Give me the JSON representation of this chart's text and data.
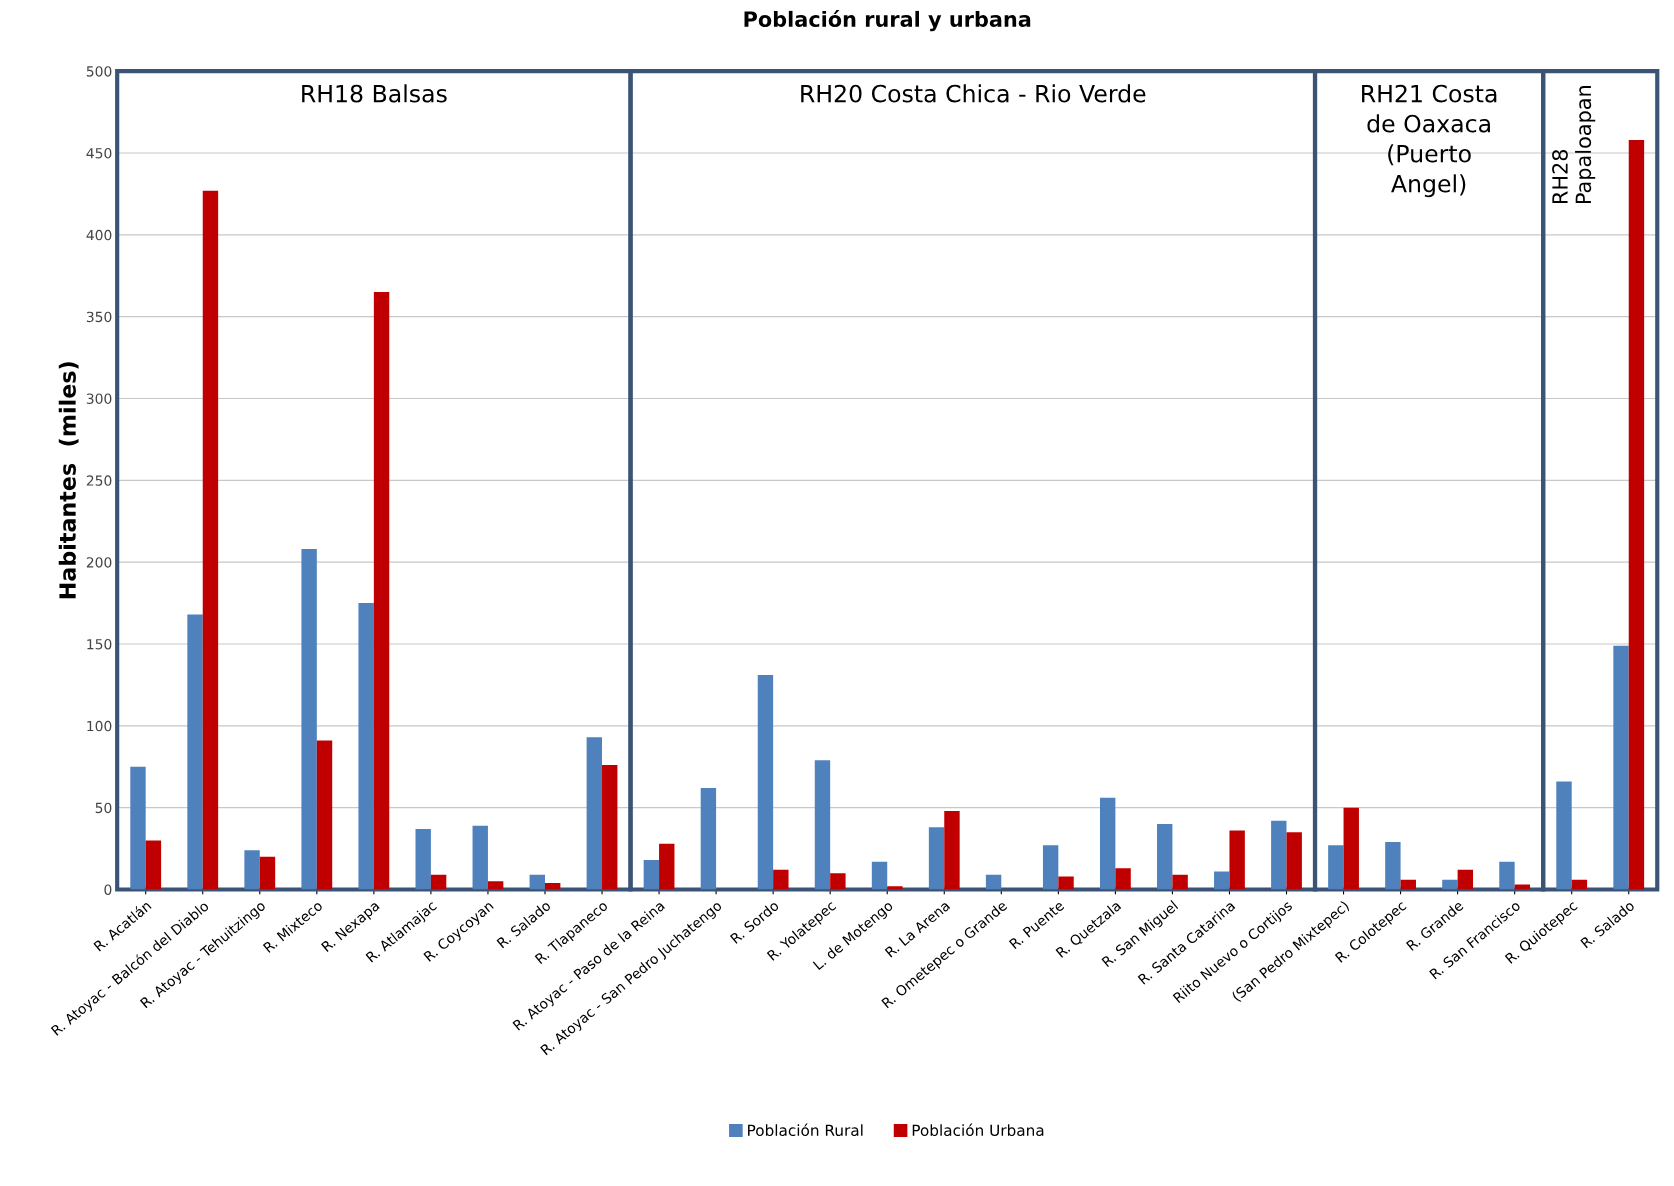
{
  "chart_data": {
    "type": "bar",
    "title": "Población rural y urbana",
    "ylabel": "Habitantes  (miles)",
    "categories": [
      "R. Acatlán",
      "R. Atoyac - Balcón del Diablo",
      "R. Atoyac - Tehuitzingo",
      "R. Mixteco",
      "R. Nexapa",
      "R. Atlamajac",
      "R. Coycoyan",
      "R. Salado",
      "R. Tlapaneco",
      "R. Atoyac - Paso de la Reina",
      "R. Atoyac - San Pedro Juchatengo",
      "R. Sordo",
      "R. Yolatepec",
      "L. de Motengo",
      "R. La Arena",
      "R. Ometepec o Grande",
      "R. Puente",
      "R. Quetzala",
      "R. San Miguel",
      "R. Santa Catarina",
      "Riito Nuevo o Cortijos",
      "(San Pedro Mixtepec)",
      "R. Colotepec",
      "R. Grande",
      "R. San Francisco",
      "R. Quiotepec",
      "R. Salado"
    ],
    "series": [
      {
        "name": "Población Rural",
        "color": "#4f81bd",
        "values": [
          75,
          168,
          24,
          208,
          175,
          37,
          39,
          9,
          93,
          18,
          62,
          131,
          79,
          17,
          38,
          9,
          27,
          56,
          40,
          11,
          42,
          27,
          29,
          6,
          17,
          66,
          149
        ]
      },
      {
        "name": "Población Urbana",
        "color": "#c00000",
        "values": [
          30,
          427,
          20,
          91,
          365,
          9,
          5,
          4,
          76,
          28,
          0,
          12,
          10,
          2,
          48,
          0,
          8,
          13,
          9,
          36,
          35,
          50,
          6,
          12,
          3,
          6,
          458
        ]
      }
    ],
    "ylim": [
      0,
      500
    ],
    "yticks": [
      0,
      50,
      100,
      150,
      200,
      250,
      300,
      350,
      400,
      450,
      500
    ],
    "grid": "y",
    "legend": "bottom",
    "annotations": [
      "RH18 Balsas",
      "RH20 Costa Chica - Rio Verde",
      "RH21 Costa\nde Oaxaca\n(Puerto\nAngel)",
      "RH28\nPapaloapan"
    ]
  }
}
